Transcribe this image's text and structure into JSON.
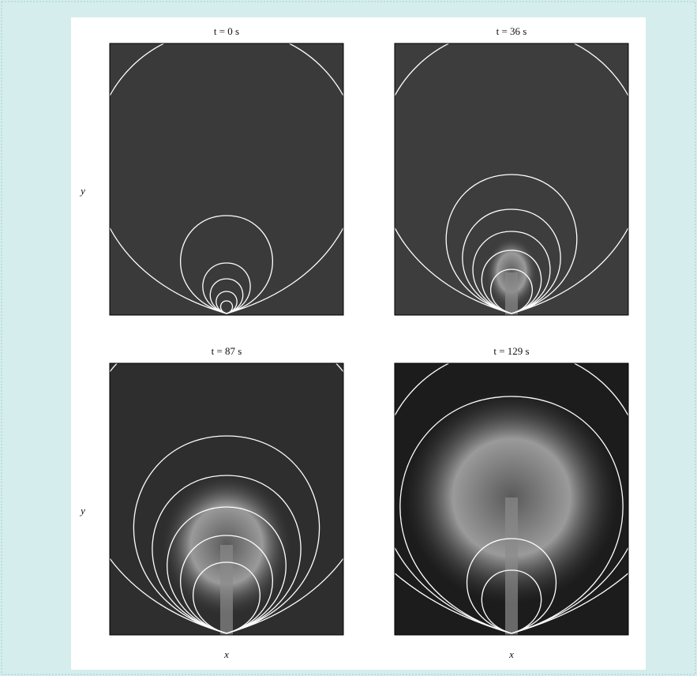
{
  "panels": [
    {
      "title": "t = 0 s",
      "y_label": "y"
    },
    {
      "title": "t = 36 s"
    },
    {
      "title": "t = 87 s",
      "y_label": "y",
      "x_label": "x"
    },
    {
      "title": "t = 129 s",
      "x_label": "x"
    }
  ]
}
